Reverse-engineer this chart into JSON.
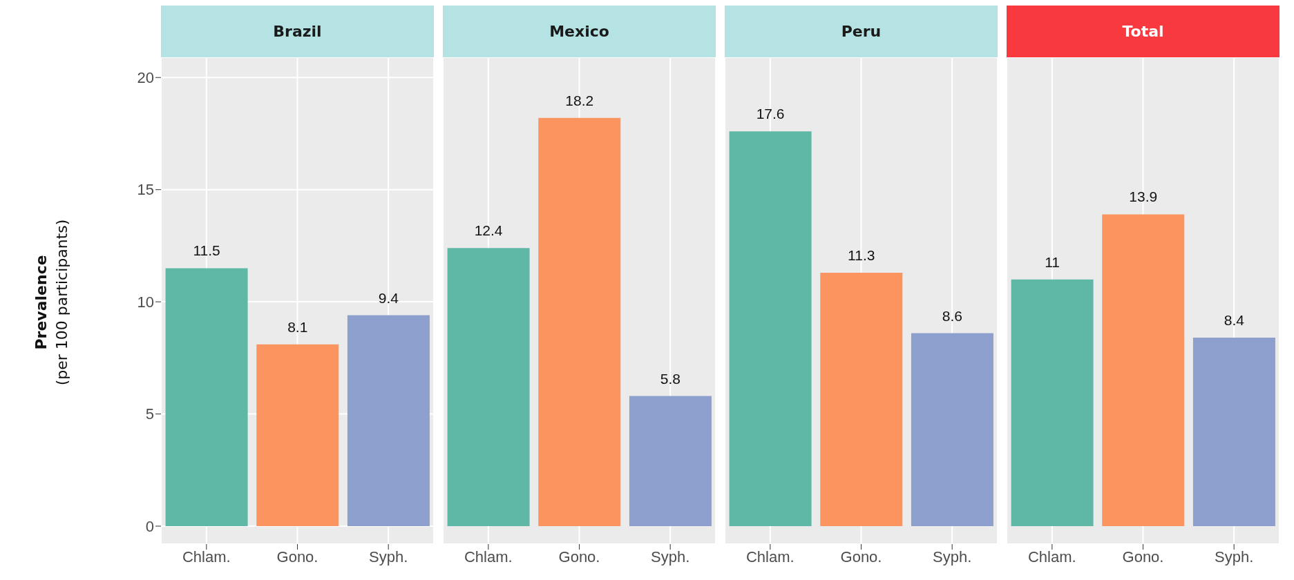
{
  "chart_data": [
    {
      "type": "bar",
      "title": "Brazil",
      "ylabel": "Prevalence (per 100 participants)",
      "categories": [
        "Chlam.",
        "Gono.",
        "Syph."
      ],
      "values": [
        11.5,
        8.1,
        9.4
      ],
      "colors": [
        "#5fb7a6",
        "#fc9460",
        "#8d9fcd"
      ],
      "data_labels": true,
      "ylim": [
        -0.8,
        20.9
      ],
      "yticks": [
        0,
        5,
        10,
        15,
        20
      ],
      "grid": true
    },
    {
      "type": "bar",
      "title": "Mexico",
      "categories": [
        "Chlam.",
        "Gono.",
        "Syph."
      ],
      "values": [
        12.4,
        18.2,
        5.8
      ],
      "colors": [
        "#5fb7a6",
        "#fc9460",
        "#8d9fcd"
      ],
      "data_labels": true,
      "ylim": [
        -0.8,
        20.9
      ],
      "yticks": [
        0,
        5,
        10,
        15,
        20
      ],
      "grid": true,
      "tick_labels": "x"
    },
    {
      "type": "bar",
      "title": "Peru",
      "categories": [
        "Chlam.",
        "Gono.",
        "Syph."
      ],
      "values": [
        17.6,
        11.3,
        8.6
      ],
      "colors": [
        "#5fb7a6",
        "#fc9460",
        "#8d9fcd"
      ],
      "data_labels": true,
      "ylim": [
        -0.8,
        20.9
      ],
      "yticks": [
        0,
        5,
        10,
        15,
        20
      ],
      "grid": true,
      "tick_labels": "x"
    },
    {
      "type": "bar",
      "title": "Total",
      "categories": [
        "Chlam.",
        "Gono.",
        "Syph."
      ],
      "values": [
        11,
        13.9,
        8.4
      ],
      "colors": [
        "#5fb7a6",
        "#fc9460",
        "#8d9fcd"
      ],
      "data_labels": true,
      "ylim": [
        -0.8,
        20.9
      ],
      "yticks": [
        0,
        5,
        10,
        15,
        20
      ],
      "grid": true,
      "tick_labels": "x"
    }
  ]
}
